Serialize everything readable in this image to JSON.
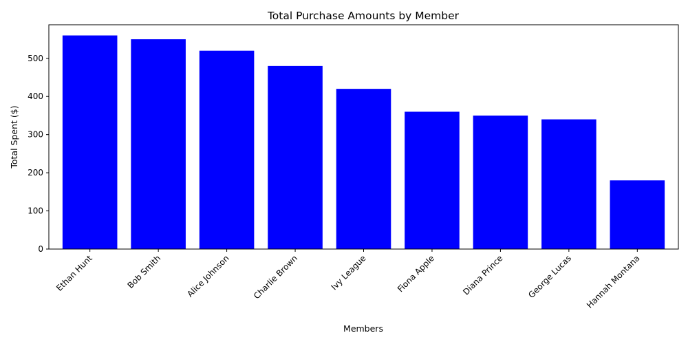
{
  "chart_data": {
    "type": "bar",
    "title": "Total Purchase Amounts by Member",
    "xlabel": "Members",
    "ylabel": "Total Spent ($)",
    "categories": [
      "Ethan Hunt",
      "Bob Smith",
      "Alice Johnson",
      "Charlie Brown",
      "Ivy League",
      "Fiona Apple",
      "Diana Prince",
      "George Lucas",
      "Hannah Montana"
    ],
    "values": [
      560,
      550,
      520,
      480,
      420,
      360,
      350,
      340,
      180
    ],
    "ylim": [
      0,
      588
    ],
    "yticks": [
      0,
      100,
      200,
      300,
      400,
      500
    ],
    "bar_color": "#0000ff",
    "grid": false,
    "legend": "none"
  }
}
